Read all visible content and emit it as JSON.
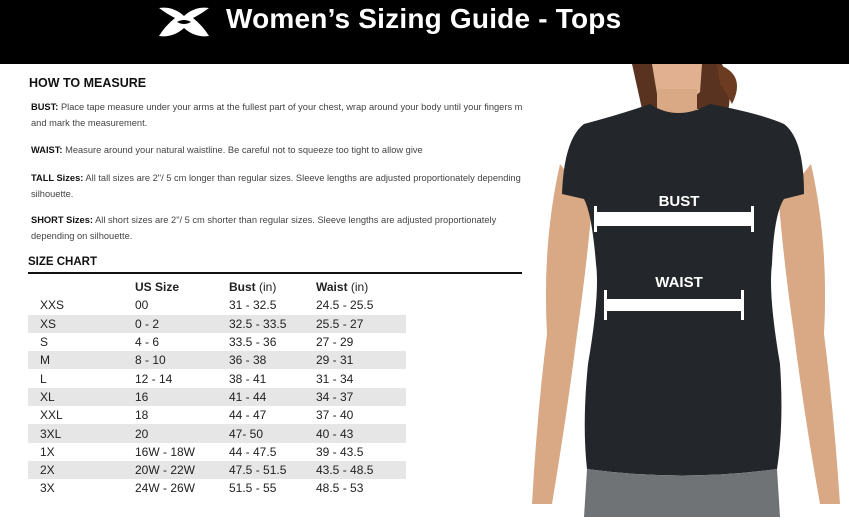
{
  "header": {
    "title": "Women’s Sizing Guide - Tops",
    "logo": "Under Armour logo"
  },
  "how_to_measure": {
    "heading": "HOW TO MEASURE",
    "items": [
      {
        "label": "BUST:",
        "text": " Place tape measure under your arms at the fullest part of your chest, wrap around your body until your fingers meet and mark the measurement."
      },
      {
        "label": "WAIST:",
        "text": " Measure around your natural waistline. Be careful not to squeeze too tight to allow give"
      },
      {
        "label": "TALL Sizes:",
        "text": " All tall sizes are 2\"/ 5 cm longer than regular sizes. Sleeve lengths are adjusted proportionately depending on silhouette."
      },
      {
        "label": "SHORT Sizes:",
        "text": " All short sizes are 2\"/ 5 cm shorter than regular sizes. Sleeve lengths are adjusted proportionately depending on silhouette."
      }
    ]
  },
  "size_chart": {
    "heading": "SIZE CHART",
    "columns": [
      {
        "bold": "",
        "unit": ""
      },
      {
        "bold": "US Size",
        "unit": ""
      },
      {
        "bold": "Bust",
        "unit": " (in)"
      },
      {
        "bold": "Waist",
        "unit": " (in)"
      }
    ],
    "rows": [
      [
        "XXS",
        "00",
        "31 - 32.5",
        "24.5 - 25.5"
      ],
      [
        "XS",
        "0 - 2",
        "32.5 - 33.5",
        "25.5 - 27"
      ],
      [
        "S",
        "4 - 6",
        "33.5 - 36",
        "27 - 29"
      ],
      [
        "M",
        "8 - 10",
        "36 - 38",
        "29 - 31"
      ],
      [
        "L",
        "12 - 14",
        "38 - 41",
        "31 - 34"
      ],
      [
        "XL",
        "16",
        "41 - 44",
        "34 - 37"
      ],
      [
        "XXL",
        "18",
        "44 - 47",
        "37 - 40"
      ],
      [
        "3XL",
        "20",
        "47- 50",
        "40 - 43"
      ],
      [
        "1X",
        "16W - 18W",
        "44 - 47.5",
        "39 - 43.5"
      ],
      [
        "2X",
        "20W - 22W",
        "47.5 - 51.5",
        "43.5 - 48.5"
      ],
      [
        "3X",
        "24W - 26W",
        "51.5 - 55",
        "48.5 - 53"
      ]
    ]
  },
  "photo": {
    "bust_label": "BUST",
    "waist_label": "WAIST"
  }
}
